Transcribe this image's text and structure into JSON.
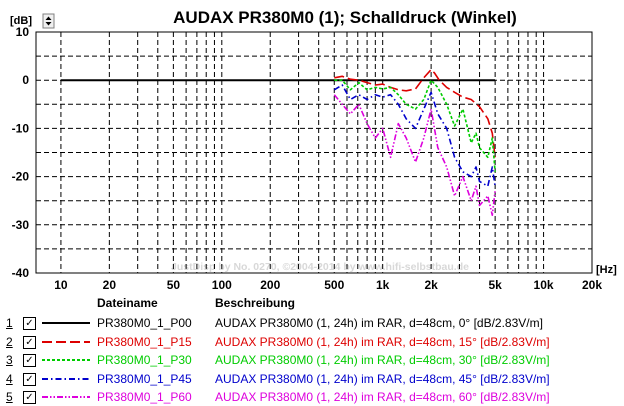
{
  "chart_data": {
    "type": "line",
    "title": "AUDAX PR380M0 (1); Schalldruck (Winkel)",
    "ylabel_unit": "[dB]",
    "xlabel_unit": "[Hz]",
    "x_scale": "log",
    "xlim": [
      7,
      20000
    ],
    "ylim": [
      -40,
      10
    ],
    "y_ticks": [
      10,
      0,
      -10,
      -20,
      -30,
      -40
    ],
    "y_tick_labels": [
      "10",
      "0",
      "-10",
      "-20",
      "-30",
      "-40"
    ],
    "x_ticks": [
      10,
      20,
      50,
      100,
      200,
      500,
      1000,
      2000,
      5000,
      10000,
      20000
    ],
    "x_tick_labels": [
      "10",
      "20",
      "50",
      "100",
      "200",
      "500",
      "1k",
      "2k",
      "5k",
      "10k",
      "20k"
    ],
    "grid": true,
    "watermark": "JustDisp by No. 0270, ©2004-2014 by www.hifi-selbstbau.de",
    "series": [
      {
        "name": "PR380M0_1_P00",
        "color": "#000000",
        "dash": "solid",
        "x": [
          10,
          5000
        ],
        "y": [
          0,
          0
        ]
      },
      {
        "name": "PR380M0_1_P15",
        "color": "#dd0000",
        "dash": "long-dash",
        "x": [
          500,
          560,
          630,
          710,
          800,
          900,
          1000,
          1120,
          1250,
          1400,
          1600,
          1800,
          2000,
          2100,
          2250,
          2500,
          2800,
          3150,
          3550,
          4000,
          4500,
          4800,
          5000
        ],
        "y": [
          0.5,
          0.8,
          0.2,
          0,
          -0.5,
          -1,
          -0.8,
          -1.5,
          -2,
          -2.2,
          -1.8,
          0.5,
          2.2,
          1.5,
          0,
          -1.5,
          -2.5,
          -3.5,
          -4,
          -5.5,
          -8,
          -11,
          -16
        ]
      },
      {
        "name": "PR380M0_1_P30",
        "color": "#00cc00",
        "dash": "short-dash",
        "x": [
          500,
          560,
          630,
          710,
          800,
          900,
          1000,
          1120,
          1250,
          1400,
          1600,
          1800,
          2000,
          2200,
          2500,
          2800,
          3150,
          3550,
          3800,
          4000,
          4500,
          4800,
          5000
        ],
        "y": [
          0,
          0,
          -2,
          -0.5,
          -2,
          -1.5,
          -1.8,
          -1.5,
          -3,
          -5,
          -6,
          -4,
          0,
          -1.5,
          -5,
          -9.5,
          -6,
          -13,
          -11,
          -14,
          -16,
          -12,
          -19
        ]
      },
      {
        "name": "PR380M0_1_P45",
        "color": "#0000cc",
        "dash": "dash-dot",
        "x": [
          500,
          560,
          630,
          710,
          800,
          900,
          1000,
          1120,
          1250,
          1400,
          1600,
          1800,
          2000,
          2200,
          2500,
          2800,
          3150,
          3550,
          3800,
          4000,
          4500,
          4800,
          5000
        ],
        "y": [
          -2,
          -1,
          -4,
          -3,
          -4,
          -3,
          -3.5,
          -3,
          -5,
          -8,
          -10,
          -6,
          -2.5,
          -7,
          -10,
          -16,
          -19,
          -20,
          -18,
          -21,
          -22,
          -18,
          -22
        ]
      },
      {
        "name": "PR380M0_1_P60",
        "color": "#dd00dd",
        "dash": "dash-dot-dot",
        "x": [
          500,
          560,
          630,
          710,
          800,
          900,
          1000,
          1120,
          1250,
          1400,
          1600,
          1800,
          2000,
          2200,
          2500,
          2800,
          3150,
          3550,
          3800,
          4000,
          4500,
          4800,
          5000
        ],
        "y": [
          -3,
          -5,
          -7,
          -5,
          -9,
          -12,
          -10,
          -16,
          -9,
          -12,
          -17,
          -12,
          -6,
          -14,
          -18,
          -24,
          -20,
          -25,
          -22,
          -26,
          -24,
          -28,
          -23
        ]
      }
    ]
  },
  "legend": {
    "header_name": "Dateiname",
    "header_desc": "Beschreibung",
    "rows": [
      {
        "num": "1",
        "checked": "✓",
        "name": "PR380M0_1_P00",
        "desc": "AUDAX PR380M0 (1, 24h) im RAR, d=48cm, 0° [dB/2.83V/m]",
        "color": "#000000"
      },
      {
        "num": "2",
        "checked": "✓",
        "name": "PR380M0_1_P15",
        "desc": "AUDAX PR380M0 (1, 24h) im RAR, d=48cm, 15° [dB/2.83V/m]",
        "color": "#dd0000"
      },
      {
        "num": "3",
        "checked": "✓",
        "name": "PR380M0_1_P30",
        "desc": "AUDAX PR380M0 (1, 24h) im RAR, d=48cm, 30° [dB/2.83V/m]",
        "color": "#00cc00"
      },
      {
        "num": "4",
        "checked": "✓",
        "name": "PR380M0_1_P45",
        "desc": "AUDAX PR380M0 (1, 24h) im RAR, d=48cm, 45° [dB/2.83V/m]",
        "color": "#0000cc"
      },
      {
        "num": "5",
        "checked": "✓",
        "name": "PR380M0_1_P60",
        "desc": "AUDAX PR380M0 (1, 24h) im RAR, d=48cm, 60° [dB/2.83V/m]",
        "color": "#dd00dd"
      }
    ]
  }
}
